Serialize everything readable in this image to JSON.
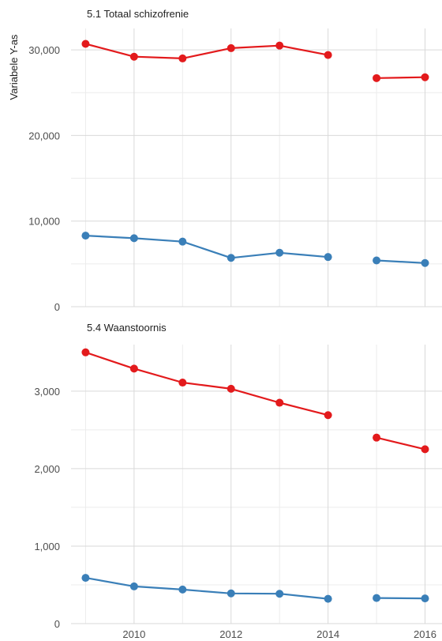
{
  "chart_data": {
    "type": "line",
    "ylabel": "Variabele Y-as",
    "x_ticks": [
      2010,
      2012,
      2014,
      2016
    ],
    "grid": true,
    "colors": {
      "red": "#e31a1c",
      "blue": "#3a7fb8"
    },
    "panels": [
      {
        "title": "5.1 Totaal schizofrenie",
        "ylim": [
          0,
          32500
        ],
        "y_ticks": [
          0,
          10000,
          20000,
          30000
        ],
        "y_tick_labels": [
          "0",
          "10,000",
          "20,000",
          "30,000"
        ],
        "series": [
          {
            "color": "#e31a1c",
            "segments": [
              {
                "x": [
                  2009,
                  2010,
                  2011,
                  2012,
                  2013,
                  2014
                ],
                "y": [
                  30700,
                  29200,
                  29000,
                  30200,
                  30500,
                  29400
                ]
              },
              {
                "x": [
                  2015,
                  2016
                ],
                "y": [
                  26700,
                  26800
                ]
              }
            ]
          },
          {
            "color": "#3a7fb8",
            "segments": [
              {
                "x": [
                  2009,
                  2010,
                  2011,
                  2012,
                  2013,
                  2014
                ],
                "y": [
                  8300,
                  8000,
                  7600,
                  5700,
                  6300,
                  5800
                ]
              },
              {
                "x": [
                  2015,
                  2016
                ],
                "y": [
                  5400,
                  5100
                ]
              }
            ]
          }
        ]
      },
      {
        "title": "5.4 Waanstoornis",
        "ylim": [
          0,
          3600
        ],
        "y_ticks": [
          0,
          1000,
          2000,
          3000
        ],
        "y_tick_labels": [
          "0",
          "1,000",
          "2,000",
          "3,000"
        ],
        "series": [
          {
            "color": "#e31a1c",
            "segments": [
              {
                "x": [
                  2009,
                  2010,
                  2011,
                  2012,
                  2013,
                  2014
                ],
                "y": [
                  3500,
                  3290,
                  3110,
                  3030,
                  2850,
                  2690
                ]
              },
              {
                "x": [
                  2015,
                  2016
                ],
                "y": [
                  2400,
                  2250
                ]
              }
            ]
          },
          {
            "color": "#3a7fb8",
            "segments": [
              {
                "x": [
                  2009,
                  2010,
                  2011,
                  2012,
                  2013,
                  2014
                ],
                "y": [
                  590,
                  480,
                  440,
                  390,
                  385,
                  320
                ]
              },
              {
                "x": [
                  2015,
                  2016
                ],
                "y": [
                  330,
                  325
                ]
              }
            ]
          }
        ]
      }
    ]
  }
}
